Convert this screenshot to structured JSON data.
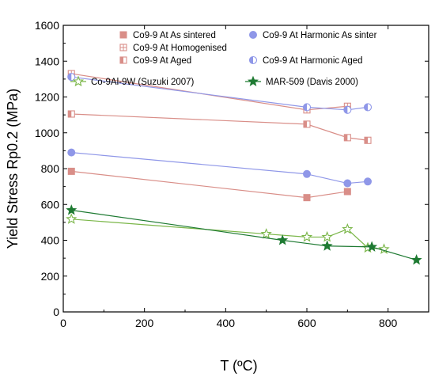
{
  "chart_data": {
    "type": "line",
    "xlabel": "T (ºC)",
    "ylabel": "Yield Stress Rp0.2 (MPa)",
    "xlim": [
      0,
      900
    ],
    "ylim": [
      0,
      1600
    ],
    "xticks": [
      0,
      200,
      400,
      600,
      800
    ],
    "yticks": [
      0,
      200,
      400,
      600,
      800,
      1000,
      1200,
      1400,
      1600
    ],
    "grid": false,
    "legend_position": "top",
    "series": [
      {
        "name": "Co9-9 At As sintered",
        "color": "#d98e88",
        "marker": "square-filled",
        "x": [
          20,
          600,
          700
        ],
        "y": [
          785,
          638,
          672
        ]
      },
      {
        "name": "Co9-9 At Homogenised",
        "color": "#d98e88",
        "marker": "square-cross",
        "x": [
          20,
          600,
          700
        ],
        "y": [
          1330,
          1128,
          1148
        ]
      },
      {
        "name": "Co9-9 At Aged",
        "color": "#d98e88",
        "marker": "square-half",
        "x": [
          20,
          600,
          700,
          750
        ],
        "y": [
          1105,
          1048,
          973,
          958
        ]
      },
      {
        "name": "Co9-9 At Harmonic As sinter",
        "color": "#8f97e8",
        "marker": "circle-filled",
        "x": [
          20,
          600,
          700,
          750
        ],
        "y": [
          890,
          770,
          718,
          728
        ]
      },
      {
        "name": "Co9-9 At Harmonic Aged",
        "color": "#8f97e8",
        "marker": "circle-half",
        "x": [
          20,
          600,
          700,
          750
        ],
        "y": [
          1312,
          1143,
          1128,
          1143
        ]
      },
      {
        "name": "Co-9Al-9W (Suzuki 2007)",
        "color": "#7ab648",
        "marker": "star-open",
        "x": [
          20,
          500,
          600,
          650,
          700,
          750,
          790
        ],
        "y": [
          518,
          435,
          418,
          418,
          462,
          358,
          350
        ]
      },
      {
        "name": "MAR-509 (Davis 2000)",
        "color": "#1e7a32",
        "marker": "star-filled",
        "x": [
          20,
          540,
          650,
          760,
          870
        ],
        "y": [
          568,
          400,
          368,
          363,
          290
        ]
      }
    ]
  }
}
